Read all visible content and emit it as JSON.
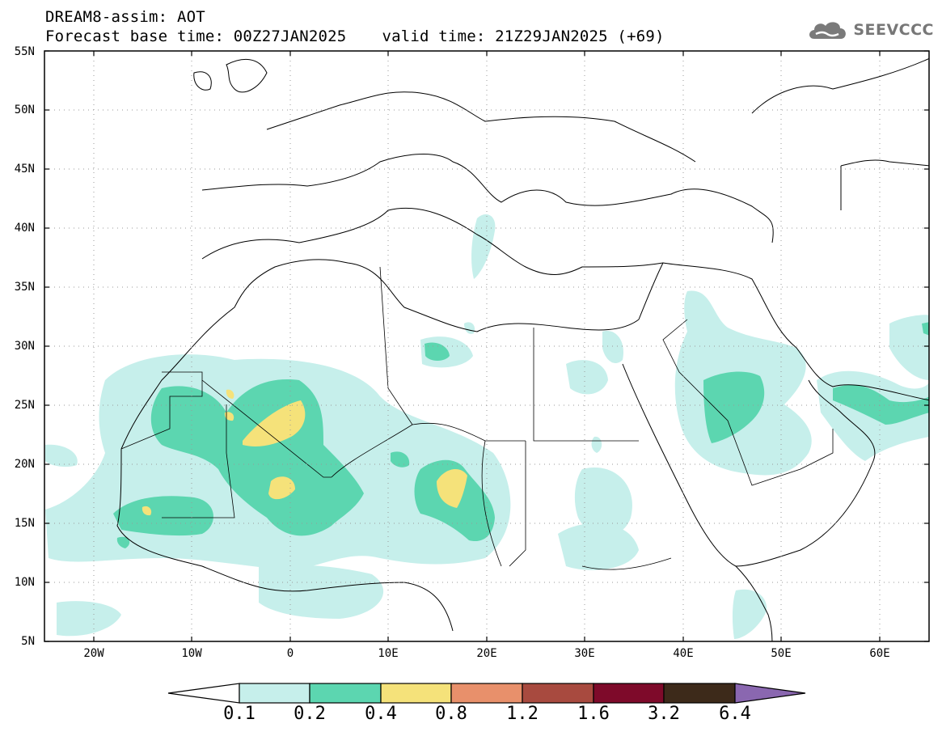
{
  "header": {
    "title": "DREAM8-assim: AOT",
    "base_time": "Forecast base time: 00Z27JAN2025",
    "valid_time": "valid time: 21Z29JAN2025 (+69)"
  },
  "logo": {
    "text": "SEEVCCC",
    "icon": "cloud-icon"
  },
  "map": {
    "lat_labels": [
      "55N",
      "50N",
      "45N",
      "40N",
      "35N",
      "30N",
      "25N",
      "20N",
      "15N",
      "10N",
      "5N"
    ],
    "lon_labels": [
      "20W",
      "10W",
      "0",
      "10E",
      "20E",
      "30E",
      "40E",
      "50E",
      "60E"
    ],
    "region": "North Africa and Middle East"
  },
  "colorbar": {
    "labels": [
      "0.1",
      "0.2",
      "0.4",
      "0.8",
      "1.2",
      "1.6",
      "3.2",
      "6.4"
    ],
    "colors": [
      "#c6efeb",
      "#5cd6b0",
      "#f5e27a",
      "#e8906b",
      "#a84a3f",
      "#7e0a2a",
      "#3d2a1a"
    ],
    "under_color": "#ffffff",
    "over_color": "#8a67b0"
  }
}
